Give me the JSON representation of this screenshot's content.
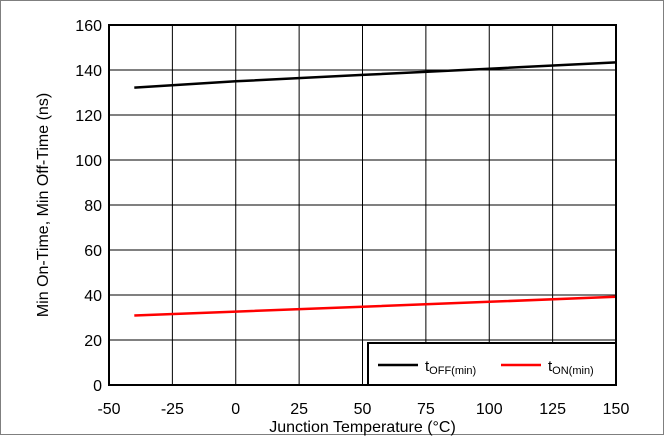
{
  "chart_data": {
    "type": "line",
    "xlabel": "Junction Temperature (°C)",
    "ylabel": "Min On-Time, Min Off-Time (ns)",
    "xlim": [
      -50,
      150
    ],
    "ylim": [
      0,
      160
    ],
    "xticks": [
      -50,
      -25,
      0,
      25,
      50,
      75,
      100,
      125,
      150
    ],
    "yticks": [
      0,
      20,
      40,
      60,
      80,
      100,
      120,
      140,
      160
    ],
    "grid": true,
    "legend_position": "bottom-right",
    "series": [
      {
        "name_main": "t",
        "name_sub": "OFF(min)",
        "color": "#000000",
        "x": [
          -40,
          0,
          50,
          100,
          150
        ],
        "y": [
          132.2,
          135,
          137.8,
          140.6,
          143.4
        ]
      },
      {
        "name_main": "t",
        "name_sub": "ON(min)",
        "color": "#ff0000",
        "x": [
          -40,
          0,
          50,
          100,
          150
        ],
        "y": [
          30.9,
          32.6,
          34.8,
          37,
          39.2
        ]
      }
    ]
  }
}
